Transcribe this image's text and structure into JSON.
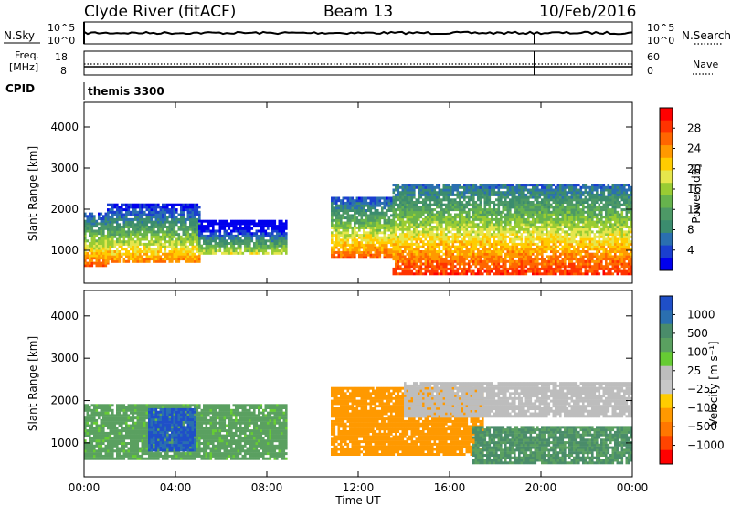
{
  "header": {
    "title": "Clyde River (fitACF)",
    "beam": "Beam 13",
    "date": "10/Feb/2016"
  },
  "nsky_panel": {
    "left_label": "N.Sky",
    "left_ticks": [
      "10^5",
      "10^0"
    ],
    "right_label": "N.Search",
    "right_ticks": [
      "10^5",
      "10^0"
    ]
  },
  "freq_panel": {
    "left_label_line1": "Freq.",
    "left_label_line2": "[MHz]",
    "left_ticks": [
      "18",
      "8"
    ],
    "right_label": "Nave",
    "right_ticks": [
      "60",
      "0"
    ]
  },
  "cpid_panel": {
    "label": "CPID",
    "value": "themis 3300"
  },
  "power_panel": {
    "ylabel": "Slant Range [km]",
    "yticks": [
      "4000",
      "3000",
      "2000",
      "1000"
    ],
    "colorbar_label": "Power [dB]",
    "colorbar_ticks": [
      "28",
      "24",
      "20",
      "16",
      "12",
      "8",
      "4"
    ],
    "colors": [
      "#ff0000",
      "#ff3300",
      "#ff6600",
      "#ff9900",
      "#ffcc00",
      "#e6e64c",
      "#99cc33",
      "#66b34d",
      "#4d9966",
      "#3b8c6e",
      "#2a6fb0",
      "#1a3fcf",
      "#0000ee"
    ]
  },
  "velocity_panel": {
    "ylabel": "Slant Range [km]",
    "yticks": [
      "4000",
      "3000",
      "2000",
      "1000"
    ],
    "colorbar_label": "Velocity [m s⁻¹]",
    "colorbar_ticks": [
      "1000",
      "500",
      "100",
      "25",
      "−25",
      "−100",
      "−500",
      "−1000"
    ],
    "colors": [
      "#1f4fc8",
      "#2a6fb0",
      "#4a8c6a",
      "#5aa060",
      "#66cc33",
      "#bdbdbd",
      "#c8c8c8",
      "#ffcc00",
      "#ff9900",
      "#ff7700",
      "#ff4400",
      "#ff0000"
    ]
  },
  "xaxis": {
    "label": "Time UT",
    "ticks": [
      "00:00",
      "04:00",
      "08:00",
      "12:00",
      "16:00",
      "20:00",
      "00:00"
    ]
  },
  "chart_data": {
    "type": "heatmap",
    "title": "Clyde River (fitACF)",
    "xlabel": "Time UT",
    "ylabel": "Slant Range [km]",
    "ylim": [
      200,
      4600
    ],
    "xlim": [
      "00:00",
      "24:00"
    ],
    "power_scale": [
      0,
      30
    ],
    "velocity_scale": [
      -1000,
      1000
    ],
    "power_bands": [
      {
        "t_start": 0.0,
        "t_end": 1.0,
        "range_min": 600,
        "range_max": 1900,
        "power": 26
      },
      {
        "t_start": 1.0,
        "t_end": 5.0,
        "range_min": 700,
        "range_max": 2100,
        "power": 24
      },
      {
        "t_start": 5.0,
        "t_end": 8.8,
        "range_min": 900,
        "range_max": 1700,
        "power": 18
      },
      {
        "t_start": 10.8,
        "t_end": 13.5,
        "range_min": 800,
        "range_max": 2300,
        "power": 26
      },
      {
        "t_start": 13.5,
        "t_end": 24.0,
        "range_min": 400,
        "range_max": 2600,
        "power": 28
      }
    ],
    "velocity_bands": [
      {
        "t_start": 0.0,
        "t_end": 8.8,
        "range_min": 600,
        "range_max": 1900,
        "velocity": 50
      },
      {
        "t_start": 2.8,
        "t_end": 4.8,
        "range_min": 800,
        "range_max": 1800,
        "velocity": 800
      },
      {
        "t_start": 10.8,
        "t_end": 17.5,
        "range_min": 700,
        "range_max": 2300,
        "velocity": -150
      },
      {
        "t_start": 14.0,
        "t_end": 24.0,
        "range_min": 1600,
        "range_max": 2400,
        "velocity": 0
      },
      {
        "t_start": 17.0,
        "t_end": 24.0,
        "range_min": 500,
        "range_max": 1400,
        "velocity": 80
      }
    ]
  }
}
